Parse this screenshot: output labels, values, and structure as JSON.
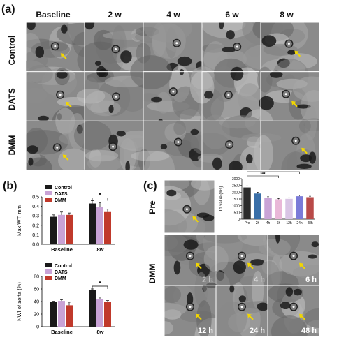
{
  "panel_a": {
    "label": "(a)",
    "columns": [
      "Baseline",
      "2 w",
      "4 w",
      "6 w",
      "8 w"
    ],
    "rows": [
      "Control",
      "DATS",
      "DMM"
    ]
  },
  "panel_b": {
    "label": "(b)",
    "chart_top": {
      "type": "bar",
      "ylabel": "Max WT, mm",
      "categories": [
        "Baseline",
        "8w"
      ],
      "yticks": [
        "0.0",
        "0.1",
        "0.2",
        "0.3",
        "0.4",
        "0.5"
      ],
      "ylim": [
        0,
        0.5
      ],
      "series": [
        {
          "name": "Control",
          "color": "#1a1a1a",
          "values": [
            0.29,
            0.43
          ],
          "errors": [
            0.02,
            0.03
          ]
        },
        {
          "name": "DATS",
          "color": "#c9a3d6",
          "values": [
            0.31,
            0.39
          ],
          "errors": [
            0.03,
            0.05
          ]
        },
        {
          "name": "DMM",
          "color": "#c0392b",
          "values": [
            0.31,
            0.34
          ],
          "errors": [
            0.02,
            0.03
          ]
        }
      ],
      "significance": "*"
    },
    "chart_bottom": {
      "type": "bar",
      "ylabel": "NWI of aorta (%)",
      "categories": [
        "Baseline",
        "8w"
      ],
      "yticks": [
        "0",
        "20",
        "40",
        "60",
        "80"
      ],
      "ylim": [
        0,
        80
      ],
      "series": [
        {
          "name": "Control",
          "color": "#1a1a1a",
          "values": [
            39,
            58
          ],
          "errors": [
            1.5,
            2
          ]
        },
        {
          "name": "DATS",
          "color": "#c9a3d6",
          "values": [
            41,
            44
          ],
          "errors": [
            2,
            3
          ]
        },
        {
          "name": "DMM",
          "color": "#c0392b",
          "values": [
            34,
            40
          ],
          "errors": [
            5,
            1.5
          ]
        }
      ],
      "significance": "*"
    }
  },
  "panel_c": {
    "label": "(c)",
    "row_labels": [
      "Pre",
      "DMM"
    ],
    "image_labels": [
      "2 h",
      "4 h",
      "6 h",
      "12 h",
      "24 h",
      "48 h"
    ],
    "chart_data": {
      "type": "bar",
      "ylabel": "T1 value (ms)",
      "categories": [
        "Pre",
        "2h",
        "4h",
        "6h",
        "12h",
        "24h",
        "48h"
      ],
      "values": [
        2350,
        1900,
        1600,
        1480,
        1510,
        1700,
        1630
      ],
      "errors": [
        120,
        100,
        60,
        60,
        80,
        90,
        70
      ],
      "colors": [
        "#2b2b2b",
        "#3a6fa8",
        "#c9a3d6",
        "#e9b8d8",
        "#d9c5e5",
        "#7b7bd8",
        "#b94a48"
      ],
      "yticks": [
        "0",
        "500",
        "1000",
        "1500",
        "2000",
        "2500",
        "3000"
      ],
      "ylim": [
        0,
        3000
      ],
      "significance": [
        "***",
        "***"
      ]
    }
  }
}
